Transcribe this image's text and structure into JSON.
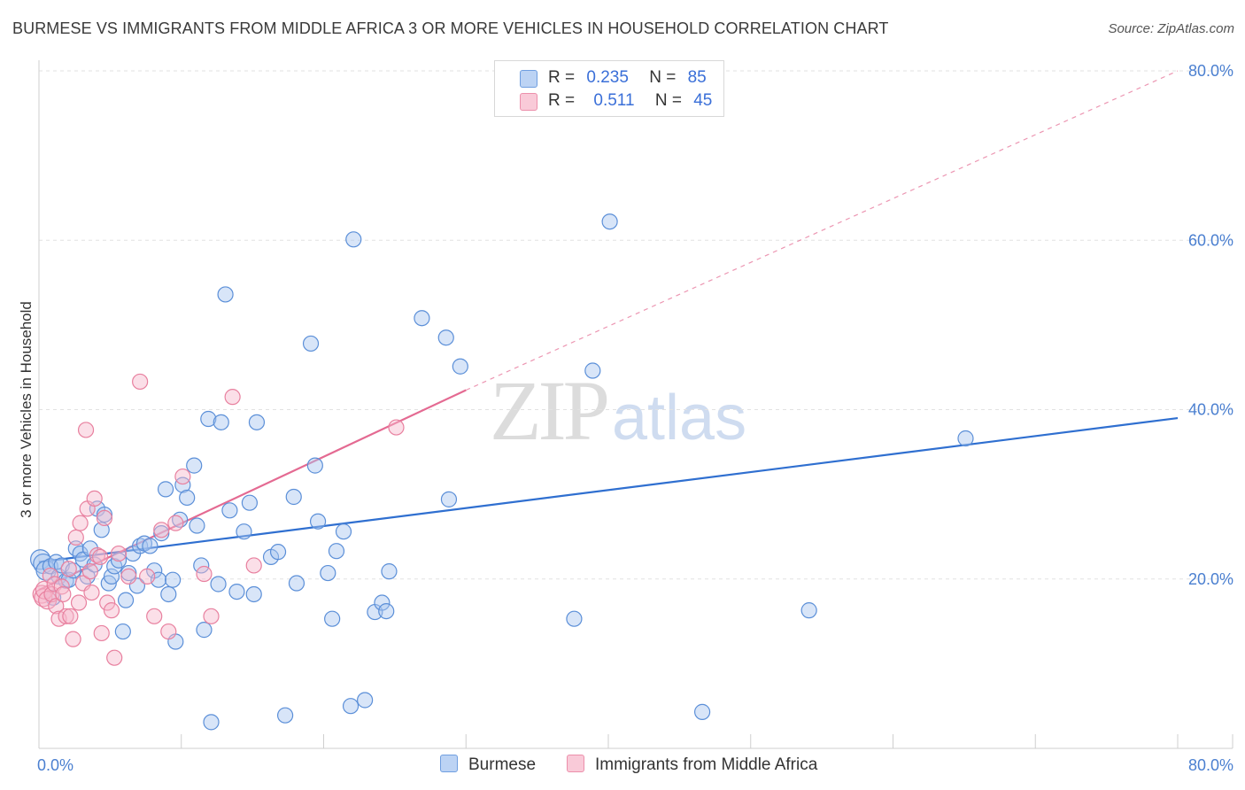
{
  "title": "BURMESE VS IMMIGRANTS FROM MIDDLE AFRICA 3 OR MORE VEHICLES IN HOUSEHOLD CORRELATION CHART",
  "source": "Source: ZipAtlas.com",
  "watermark": {
    "zip": "ZIP",
    "atlas": "atlas"
  },
  "legend": {
    "rows": [
      {
        "r_label": "R =",
        "r_value": "0.235",
        "n_label": "N =",
        "n_value": "85"
      },
      {
        "r_label": "R =",
        "r_value": "0.511",
        "n_label": "N =",
        "n_value": "45"
      }
    ]
  },
  "bottom_legend": {
    "series1": "Burmese",
    "series2": "Immigrants from Middle Africa"
  },
  "colors": {
    "blue_fill": "#a9c6f0",
    "blue_stroke": "#5b8fd8",
    "blue_line": "#2f6fd0",
    "pink_fill": "#f6b8cb",
    "pink_stroke": "#e8809f",
    "pink_line": "#e46a92",
    "grid": "#e2e2e2",
    "axis_text": "#4a7fd0"
  },
  "chart_data": {
    "type": "scatter",
    "title": "BURMESE VS IMMIGRANTS FROM MIDDLE AFRICA 3 OR MORE VEHICLES IN HOUSEHOLD CORRELATION CHART",
    "xlabel": "",
    "ylabel": "3 or more Vehicles in Household",
    "xlim": [
      0,
      80
    ],
    "ylim": [
      0,
      80
    ],
    "x_tick_labels": [
      "0.0%",
      "80.0%"
    ],
    "y_ticks": [
      20,
      40,
      60,
      80
    ],
    "y_tick_labels": [
      "20.0%",
      "40.0%",
      "60.0%",
      "80.0%"
    ],
    "grid": true,
    "legend_position": "top-center",
    "series": [
      {
        "name": "Burmese",
        "R": 0.235,
        "N": 85,
        "trend": {
          "x0": 0,
          "y0": 22.0,
          "x1": 80,
          "y1": 39.0,
          "style": "solid"
        },
        "points": [
          [
            0.1,
            22.3
          ],
          [
            0.3,
            21.8
          ],
          [
            0.5,
            21.0
          ],
          [
            0.8,
            21.5
          ],
          [
            1.0,
            17.8
          ],
          [
            1.2,
            22.0
          ],
          [
            1.4,
            20.3
          ],
          [
            1.6,
            21.6
          ],
          [
            1.9,
            19.8
          ],
          [
            2.1,
            19.9
          ],
          [
            2.4,
            21.0
          ],
          [
            2.6,
            23.6
          ],
          [
            2.9,
            23.0
          ],
          [
            3.1,
            22.3
          ],
          [
            3.4,
            20.3
          ],
          [
            3.6,
            23.6
          ],
          [
            3.9,
            21.7
          ],
          [
            4.1,
            28.3
          ],
          [
            4.4,
            25.8
          ],
          [
            4.6,
            27.6
          ],
          [
            4.9,
            19.5
          ],
          [
            5.1,
            20.3
          ],
          [
            5.3,
            21.5
          ],
          [
            5.6,
            22.2
          ],
          [
            5.9,
            13.8
          ],
          [
            6.1,
            17.5
          ],
          [
            6.3,
            20.7
          ],
          [
            6.6,
            23.0
          ],
          [
            6.9,
            19.2
          ],
          [
            7.1,
            23.9
          ],
          [
            7.4,
            24.2
          ],
          [
            7.8,
            23.9
          ],
          [
            8.1,
            21.0
          ],
          [
            8.4,
            19.9
          ],
          [
            8.6,
            25.4
          ],
          [
            8.9,
            30.6
          ],
          [
            9.1,
            18.2
          ],
          [
            9.4,
            19.9
          ],
          [
            9.6,
            12.6
          ],
          [
            9.9,
            27.0
          ],
          [
            10.1,
            31.1
          ],
          [
            10.4,
            29.6
          ],
          [
            10.9,
            33.4
          ],
          [
            11.1,
            26.3
          ],
          [
            11.4,
            21.6
          ],
          [
            11.6,
            14.0
          ],
          [
            11.9,
            38.9
          ],
          [
            12.1,
            3.1
          ],
          [
            12.6,
            19.4
          ],
          [
            12.8,
            38.5
          ],
          [
            13.1,
            53.6
          ],
          [
            13.4,
            28.1
          ],
          [
            13.9,
            18.5
          ],
          [
            14.4,
            25.6
          ],
          [
            14.8,
            29.0
          ],
          [
            15.1,
            18.2
          ],
          [
            15.3,
            38.5
          ],
          [
            16.3,
            22.6
          ],
          [
            16.8,
            23.2
          ],
          [
            17.3,
            3.9
          ],
          [
            17.9,
            29.7
          ],
          [
            18.1,
            19.5
          ],
          [
            19.1,
            47.8
          ],
          [
            19.4,
            33.4
          ],
          [
            19.6,
            26.8
          ],
          [
            20.3,
            20.7
          ],
          [
            20.6,
            15.3
          ],
          [
            20.9,
            23.3
          ],
          [
            21.4,
            25.6
          ],
          [
            21.9,
            5.0
          ],
          [
            22.1,
            60.1
          ],
          [
            22.9,
            5.7
          ],
          [
            23.6,
            16.1
          ],
          [
            24.1,
            17.2
          ],
          [
            24.4,
            16.2
          ],
          [
            24.6,
            20.9
          ],
          [
            26.9,
            50.8
          ],
          [
            28.6,
            48.5
          ],
          [
            28.8,
            29.4
          ],
          [
            29.6,
            45.1
          ],
          [
            37.6,
            15.3
          ],
          [
            38.9,
            44.6
          ],
          [
            40.1,
            62.2
          ],
          [
            46.6,
            4.3
          ],
          [
            54.1,
            16.3
          ],
          [
            65.1,
            36.6
          ]
        ]
      },
      {
        "name": "Immigrants from Middle Africa",
        "R": 0.511,
        "N": 45,
        "trend": {
          "x0": 0,
          "y0": 18.7,
          "x1": 30,
          "y1": 42.3,
          "dashed_to": {
            "x": 80,
            "y": 80
          }
        },
        "points": [
          [
            0.2,
            18.2
          ],
          [
            0.3,
            17.8
          ],
          [
            0.4,
            18.7
          ],
          [
            0.6,
            17.5
          ],
          [
            0.8,
            20.4
          ],
          [
            0.9,
            18.2
          ],
          [
            1.1,
            19.4
          ],
          [
            1.2,
            16.8
          ],
          [
            1.4,
            15.3
          ],
          [
            1.6,
            19.1
          ],
          [
            1.7,
            18.2
          ],
          [
            1.9,
            15.6
          ],
          [
            2.1,
            21.2
          ],
          [
            2.2,
            15.6
          ],
          [
            2.4,
            12.9
          ],
          [
            2.6,
            24.9
          ],
          [
            2.8,
            17.2
          ],
          [
            2.9,
            26.6
          ],
          [
            3.1,
            19.5
          ],
          [
            3.3,
            37.6
          ],
          [
            3.4,
            28.3
          ],
          [
            3.6,
            20.9
          ],
          [
            3.7,
            18.4
          ],
          [
            3.9,
            29.5
          ],
          [
            4.1,
            22.8
          ],
          [
            4.3,
            22.6
          ],
          [
            4.4,
            13.6
          ],
          [
            4.6,
            27.2
          ],
          [
            4.8,
            17.2
          ],
          [
            5.1,
            16.3
          ],
          [
            5.3,
            10.7
          ],
          [
            5.6,
            23.0
          ],
          [
            6.3,
            20.3
          ],
          [
            7.1,
            43.3
          ],
          [
            7.6,
            20.3
          ],
          [
            8.1,
            15.6
          ],
          [
            8.6,
            25.8
          ],
          [
            9.1,
            13.8
          ],
          [
            9.6,
            26.6
          ],
          [
            10.1,
            32.1
          ],
          [
            11.6,
            20.6
          ],
          [
            12.1,
            15.6
          ],
          [
            13.6,
            41.5
          ],
          [
            15.1,
            21.6
          ],
          [
            25.1,
            37.9
          ]
        ]
      }
    ]
  }
}
